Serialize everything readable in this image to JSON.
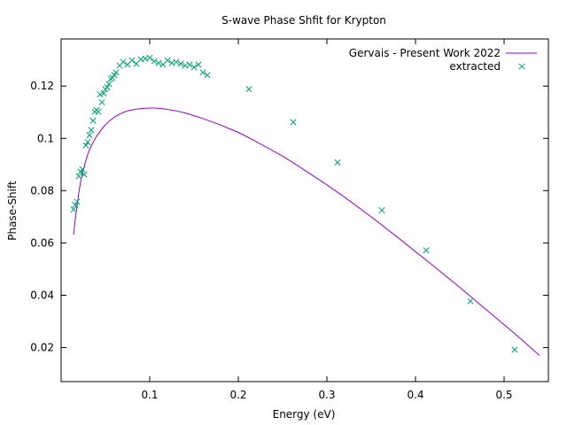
{
  "chart_data": {
    "type": "scatter",
    "title": "S-wave Phase Shfit for Krypton",
    "xlabel": "Energy (eV)",
    "ylabel": "Phase-Shift",
    "xlim": [
      0.0,
      0.55
    ],
    "ylim": [
      0.007,
      0.138
    ],
    "xticks": [
      {
        "value": 0.1,
        "label": "0.1"
      },
      {
        "value": 0.2,
        "label": "0.2"
      },
      {
        "value": 0.3,
        "label": "0.3"
      },
      {
        "value": 0.4,
        "label": "0.4"
      },
      {
        "value": 0.5,
        "label": "0.5"
      }
    ],
    "yticks": [
      {
        "value": 0.02,
        "label": "0.02"
      },
      {
        "value": 0.04,
        "label": "0.04"
      },
      {
        "value": 0.06,
        "label": "0.06"
      },
      {
        "value": 0.08,
        "label": "0.08"
      },
      {
        "value": 0.1,
        "label": "0.1"
      },
      {
        "value": 0.12,
        "label": "0.12"
      }
    ],
    "grid": false,
    "legend_position": "top-right",
    "series": [
      {
        "name": "Gervais - Present Work 2022",
        "kind": "line",
        "color": "#9400d3",
        "x": [
          0.014,
          0.016,
          0.018,
          0.02,
          0.022,
          0.025,
          0.028,
          0.031,
          0.035,
          0.04,
          0.045,
          0.05,
          0.055,
          0.06,
          0.065,
          0.07,
          0.075,
          0.08,
          0.085,
          0.09,
          0.095,
          0.1,
          0.105,
          0.11,
          0.115,
          0.12,
          0.13,
          0.14,
          0.15,
          0.16,
          0.18,
          0.2,
          0.21,
          0.22,
          0.25,
          0.26,
          0.28,
          0.3,
          0.32,
          0.35,
          0.38,
          0.4,
          0.42,
          0.45,
          0.47,
          0.5,
          0.52,
          0.54
        ],
        "y": [
          0.0632,
          0.0692,
          0.0742,
          0.0792,
          0.0834,
          0.0878,
          0.0917,
          0.0948,
          0.0978,
          0.1008,
          0.1032,
          0.1052,
          0.1068,
          0.1081,
          0.1091,
          0.1099,
          0.1105,
          0.1109,
          0.1112,
          0.1114,
          0.1115,
          0.1116,
          0.1116,
          0.1115,
          0.1113,
          0.1111,
          0.1105,
          0.1097,
          0.1087,
          0.1076,
          0.1051,
          0.1023,
          0.1006,
          0.0988,
          0.0932,
          0.0911,
          0.0867,
          0.0822,
          0.0775,
          0.07,
          0.0621,
          0.0567,
          0.0513,
          0.043,
          0.0373,
          0.0288,
          0.023,
          0.017
        ]
      },
      {
        "name": "extracted",
        "kind": "points",
        "marker": "x",
        "color": "#009e73",
        "x": [
          0.014,
          0.016,
          0.018,
          0.02,
          0.022,
          0.024,
          0.026,
          0.028,
          0.03,
          0.032,
          0.034,
          0.036,
          0.038,
          0.04,
          0.042,
          0.044,
          0.046,
          0.048,
          0.05,
          0.052,
          0.054,
          0.056,
          0.058,
          0.06,
          0.062,
          0.066,
          0.07,
          0.075,
          0.08,
          0.085,
          0.09,
          0.095,
          0.1,
          0.105,
          0.11,
          0.115,
          0.12,
          0.125,
          0.13,
          0.135,
          0.14,
          0.145,
          0.15,
          0.155,
          0.16,
          0.165,
          0.212,
          0.262,
          0.312,
          0.362,
          0.412,
          0.462,
          0.512
        ],
        "y": [
          0.0728,
          0.0745,
          0.0758,
          0.0855,
          0.0872,
          0.0882,
          0.0862,
          0.0973,
          0.0985,
          0.1012,
          0.1032,
          0.1068,
          0.1102,
          0.1108,
          0.1102,
          0.1168,
          0.1138,
          0.1172,
          0.1188,
          0.1195,
          0.1208,
          0.1228,
          0.1232,
          0.1242,
          0.1252,
          0.1278,
          0.1292,
          0.1282,
          0.1298,
          0.1285,
          0.1302,
          0.1305,
          0.1308,
          0.1295,
          0.1288,
          0.1282,
          0.1298,
          0.1288,
          0.1292,
          0.1285,
          0.1278,
          0.1282,
          0.1272,
          0.1282,
          0.1252,
          0.1242,
          0.1188,
          0.1062,
          0.0908,
          0.0725,
          0.0572,
          0.0378,
          0.0192
        ]
      }
    ]
  }
}
